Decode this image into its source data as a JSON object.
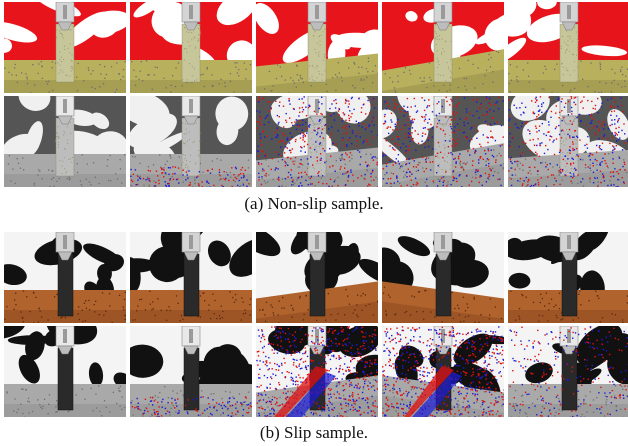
{
  "figure": {
    "caption_a": "(a) Non-slip sample.",
    "caption_b": "(b) Slip sample."
  },
  "sections": [
    {
      "id": "a",
      "kind": "non-slip",
      "rows": [
        {
          "row": "rgb",
          "panels": [
            {
              "top": "red-white",
              "floor": "grass",
              "tilt": 0,
              "object": "wood-block"
            },
            {
              "top": "red-white",
              "floor": "grass",
              "tilt": 0,
              "object": "wood-block"
            },
            {
              "top": "red-white",
              "floor": "grass",
              "tilt": -6,
              "object": "wood-block"
            },
            {
              "top": "red-white",
              "floor": "grass",
              "tilt": -10,
              "object": "wood-block"
            },
            {
              "top": "red-white",
              "floor": "grass",
              "tilt": 0,
              "object": "wood-block"
            }
          ]
        },
        {
          "row": "event",
          "panels": [
            {
              "top": "gray-white",
              "floor": "gray",
              "tilt": 0,
              "events": "none"
            },
            {
              "top": "gray-white",
              "floor": "gray",
              "tilt": 0,
              "events": "light"
            },
            {
              "top": "gray-white",
              "floor": "gray",
              "tilt": -6,
              "events": "edges"
            },
            {
              "top": "gray-white",
              "floor": "gray",
              "tilt": -10,
              "events": "edges"
            },
            {
              "top": "gray-white",
              "floor": "gray",
              "tilt": -4,
              "events": "edges"
            }
          ]
        }
      ]
    },
    {
      "id": "b",
      "kind": "slip",
      "rows": [
        {
          "row": "rgb",
          "panels": [
            {
              "top": "black-white",
              "floor": "wood",
              "tilt": 0,
              "object": "dark-bar"
            },
            {
              "top": "black-white",
              "floor": "wood",
              "tilt": 0,
              "object": "dark-bar"
            },
            {
              "top": "black-white",
              "floor": "wood",
              "tilt": -8,
              "object": "dark-bar"
            },
            {
              "top": "black-white",
              "floor": "wood",
              "tilt": 8,
              "object": "dark-bar"
            },
            {
              "top": "black-white",
              "floor": "wood",
              "tilt": 0,
              "object": "dark-bar"
            }
          ]
        },
        {
          "row": "event",
          "panels": [
            {
              "top": "black-white",
              "floor": "gray",
              "tilt": 0,
              "events": "none"
            },
            {
              "top": "black-white",
              "floor": "gray",
              "tilt": 0,
              "events": "light"
            },
            {
              "top": "black-white",
              "floor": "gray",
              "tilt": -8,
              "events": "heavy"
            },
            {
              "top": "black-white",
              "floor": "gray",
              "tilt": 8,
              "events": "heavy"
            },
            {
              "top": "black-white",
              "floor": "gray",
              "tilt": 0,
              "events": "medium"
            }
          ]
        }
      ]
    }
  ],
  "colors": {
    "red": "#e8141c",
    "grass": "#b9b05e",
    "grass_dark": "#8f8a47",
    "wood": "#8a4420",
    "wood_light": "#b0632c",
    "event_blue": "#1b1bd8",
    "event_red": "#e01010",
    "gray_floor": "#a9a9a9",
    "bar": "#2a2a2a"
  }
}
